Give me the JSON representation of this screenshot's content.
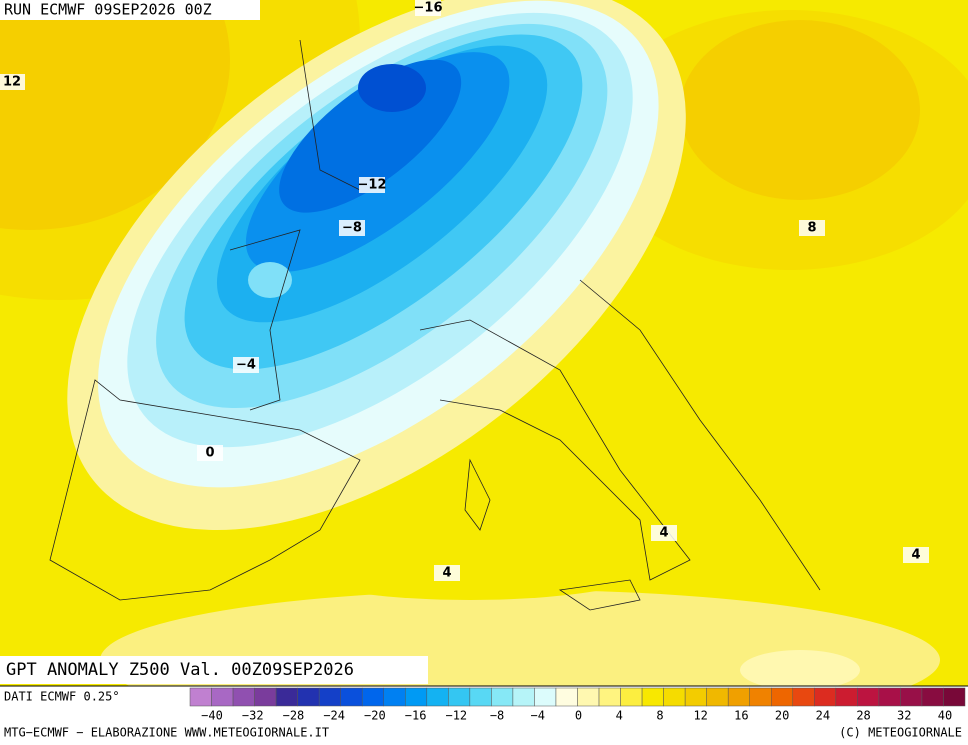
{
  "header": {
    "run": "RUN ECMWF 09SEP2026 00Z"
  },
  "map": {
    "title": "GPT ANOMALY Z500 Val. 00Z09SEP2026",
    "contour_labels": [
      "−16",
      "12",
      "−12",
      "−8",
      "8",
      "−4",
      "0",
      "4",
      "4",
      "4"
    ]
  },
  "legend": {
    "source": "DATI ECMWF 0.25°",
    "colors": [
      "#c080d0",
      "#a868c4",
      "#9050b0",
      "#7a3c9c",
      "#3a2a98",
      "#2232b0",
      "#1440c8",
      "#0a50dc",
      "#0066ec",
      "#0080f2",
      "#009af4",
      "#14b2f2",
      "#34c6f2",
      "#58d8f4",
      "#86e8f6",
      "#b6f4f8",
      "#dcfcfc",
      "#fffde0",
      "#fff8b0",
      "#fff480",
      "#fcee40",
      "#f8e800",
      "#f5dc00",
      "#f3cc00",
      "#f0b800",
      "#f0a000",
      "#f08200",
      "#ee6600",
      "#e84810",
      "#dc2c20",
      "#cc1c30",
      "#bc1440",
      "#a81048",
      "#981048",
      "#880c40",
      "#780838"
    ],
    "ticks": [
      "−40",
      "−32",
      "−28",
      "−24",
      "−20",
      "−16",
      "−12",
      "−8",
      "−4",
      "0",
      "4",
      "8",
      "12",
      "16",
      "20",
      "24",
      "28",
      "32",
      "40"
    ]
  },
  "footer": {
    "left": "MTG−ECMWF − ELABORAZIONE WWW.METEOGIORNALE.IT",
    "right": "(C) METEOGIORNALE"
  }
}
